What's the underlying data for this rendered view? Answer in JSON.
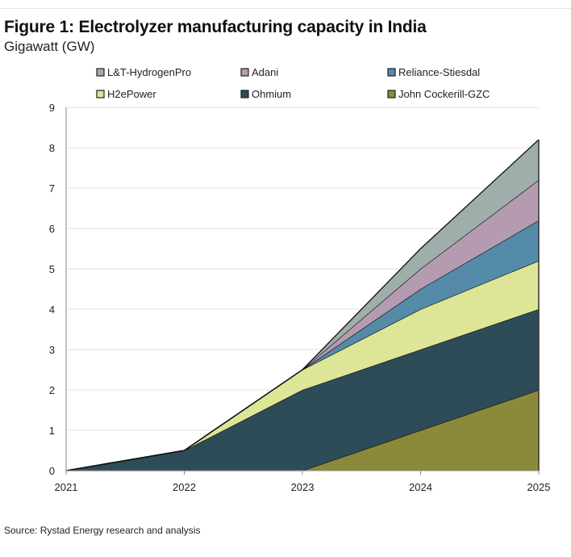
{
  "title": "Figure 1: Electrolyzer manufacturing capacity in India",
  "subtitle": "Gigawatt (GW)",
  "source": "Source: Rystad Energy research and analysis",
  "chart_data": {
    "type": "area",
    "stacked": true,
    "x": [
      "2021",
      "2022",
      "2023",
      "2024",
      "2025"
    ],
    "ylim": [
      0,
      9
    ],
    "yticks": [
      0,
      1,
      2,
      3,
      4,
      5,
      6,
      7,
      8,
      9
    ],
    "grid": true,
    "legend_position": "top",
    "series": [
      {
        "name": "John Cockerill-GZC",
        "color": "#8a8a3a",
        "values": [
          0,
          0,
          0,
          1,
          2
        ]
      },
      {
        "name": "Ohmium",
        "color": "#2e4b58",
        "values": [
          0,
          0.5,
          2,
          2,
          2
        ]
      },
      {
        "name": "H2ePower",
        "color": "#dde596",
        "values": [
          0,
          0,
          0.5,
          1,
          1.2
        ]
      },
      {
        "name": "Reliance-Stiesdal",
        "color": "#538ba8",
        "values": [
          0,
          0,
          0,
          0.5,
          1
        ]
      },
      {
        "name": "Adani",
        "color": "#b59bb0",
        "values": [
          0,
          0,
          0,
          0.5,
          1
        ]
      },
      {
        "name": "L&T-HydrogenPro",
        "color": "#9fadab",
        "values": [
          0,
          0,
          0,
          0.5,
          1
        ]
      }
    ],
    "legend_order": [
      "L&T-HydrogenPro",
      "Adani",
      "Reliance-Stiesdal",
      "H2ePower",
      "Ohmium",
      "John Cockerill-GZC"
    ]
  }
}
